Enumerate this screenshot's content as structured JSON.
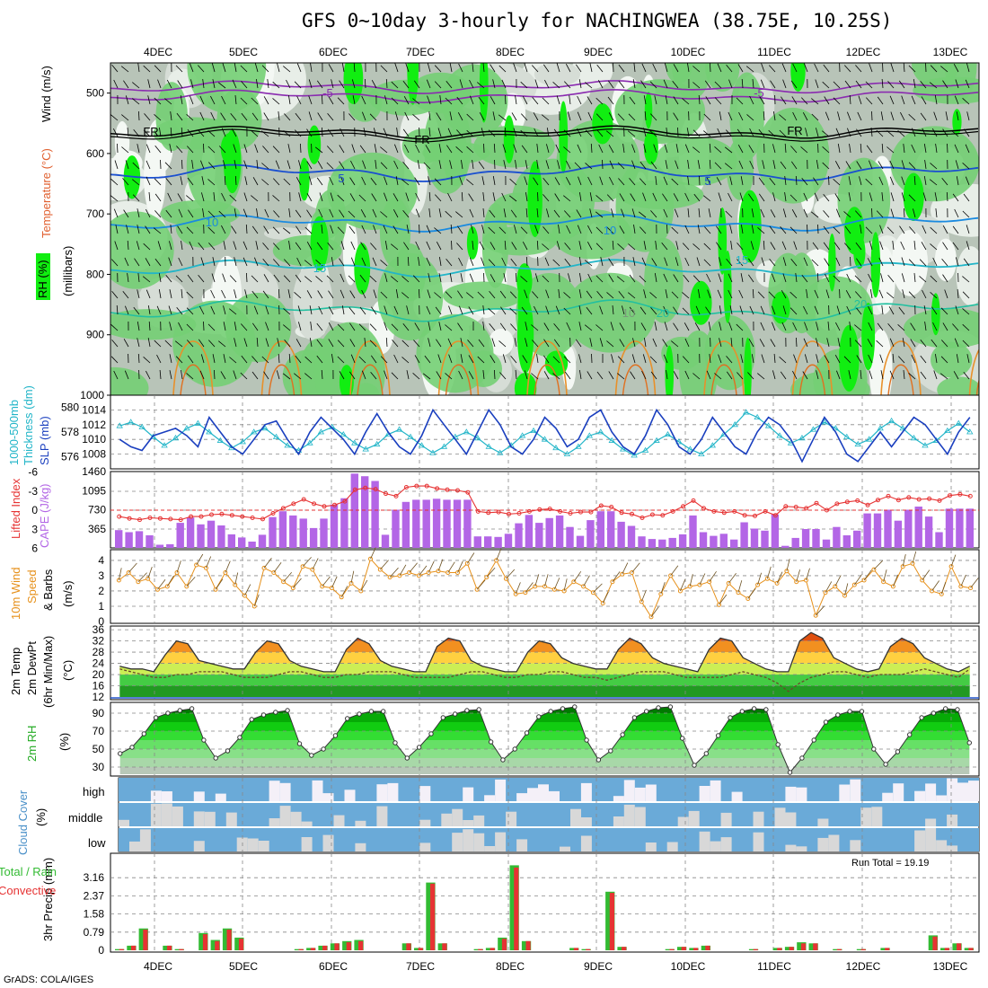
{
  "title": "GFS 0~10day 3-hourly for NACHINGWEA (38.75E, 10.25S)",
  "footer": "GrADS: COLA/IGES",
  "run_total": "Run Total = 19.19",
  "dates": [
    "4DEC",
    "5DEC",
    "6DEC",
    "7DEC",
    "8DEC",
    "9DEC",
    "10DEC",
    "11DEC",
    "12DEC",
    "13DEC"
  ],
  "colors": {
    "rh_light": "#d6ddd6",
    "rh_mid": "#b8c4b8",
    "rh_green": "#74cf74",
    "rh_bright": "#11ee11",
    "slp": "#1a3fbf",
    "thickness": "#22b5c8",
    "cape": "#b366e6",
    "lifted": "#e63333",
    "wind10": "#e6901a",
    "cloud": "#6aaad8",
    "precip_total": "#33bb33",
    "precip_conv": "#e63333"
  },
  "panels": {
    "upper_air": {
      "labels": [
        "Wind (m/s)",
        "Temperature (°C)",
        "RH (%)",
        "(millibars)"
      ],
      "y_ticks": [
        "500",
        "600",
        "700",
        "800",
        "900",
        "1000"
      ],
      "contour_labels": [
        "-5",
        "-5",
        "FR",
        "FR",
        "FR",
        "-5",
        "5",
        "5",
        "10",
        "10",
        "15",
        "15",
        "20",
        "20",
        "10"
      ]
    },
    "slp": {
      "labels": [
        "1000-500mb",
        "Thickness (dm)",
        "SLP (mb)"
      ],
      "thickness_ticks": [
        "580",
        "578",
        "576"
      ],
      "slp_ticks": [
        "1014",
        "1012",
        "1010",
        "1008"
      ]
    },
    "cape": {
      "labels": [
        "Lifted Index",
        "CAPE (J/kg)"
      ],
      "li_ticks": [
        "-6",
        "-3",
        "0",
        "3",
        "6"
      ],
      "cape_ticks": [
        "1460",
        "1095",
        "730",
        "365"
      ]
    },
    "wind10": {
      "labels": [
        "10m Wind",
        "Speed",
        "& Barbs",
        "(m/s)"
      ],
      "y_ticks": [
        "4",
        "3",
        "2",
        "1",
        "0"
      ]
    },
    "temp": {
      "labels": [
        "2m Temp",
        "2m DewPt",
        "(6hr Min/Max)",
        "(°C)"
      ],
      "y_ticks": [
        "36",
        "32",
        "28",
        "24",
        "20",
        "16",
        "12"
      ]
    },
    "rh": {
      "labels": [
        "2m RH",
        "(%)"
      ],
      "y_ticks": [
        "90",
        "70",
        "50",
        "30"
      ]
    },
    "cloud": {
      "labels": [
        "Cloud Cover",
        "(%)"
      ],
      "layers": [
        "high",
        "middle",
        "low"
      ]
    },
    "precip": {
      "labels": [
        "3hr Precip (mm)",
        "Total / Rain",
        "Convective"
      ],
      "y_ticks": [
        "3.16",
        "2.37",
        "1.58",
        "0.79",
        "0"
      ]
    }
  },
  "chart_data": [
    {
      "type": "line",
      "title": "SLP / 1000-500mb Thickness",
      "series": [
        {
          "name": "SLP (mb)",
          "values": [
            1010,
            1009,
            1008.5,
            1010.5,
            1011,
            1011.5,
            1010.5,
            1009,
            1013,
            1011,
            1009,
            1008,
            1010,
            1012,
            1012.5,
            1010,
            1008,
            1011,
            1013,
            1011.5,
            1010,
            1008,
            1011,
            1013.5,
            1011,
            1009,
            1008,
            1010.5,
            1014,
            1012,
            1010,
            1008,
            1011,
            1014,
            1012,
            1009,
            1008,
            1010,
            1013,
            1011.5,
            1009,
            1010,
            1013,
            1014,
            1011,
            1009,
            1008,
            1010.5,
            1014,
            1012,
            1009,
            1008,
            1010,
            1013,
            1011,
            1009,
            1008,
            1011,
            1013,
            1012,
            1010,
            1007,
            1010,
            1013,
            1011,
            1008,
            1007,
            1009,
            1011,
            1009,
            1011,
            1013,
            1012,
            1010,
            1008,
            1011,
            1013
          ]
        },
        {
          "name": "Thickness (dm)",
          "values": [
            578.5,
            578.8,
            578.4,
            577.6,
            576.9,
            577.5,
            578.3,
            578.7,
            578.0,
            577.3,
            576.7,
            577.2,
            578.0,
            578.3,
            577.6,
            576.9,
            576.5,
            577.1,
            578.0,
            578.4,
            577.8,
            577.1,
            576.6,
            577.0,
            577.8,
            578.2,
            577.6,
            576.9,
            576.3,
            576.8,
            577.6,
            578.0,
            577.5,
            576.8,
            576.3,
            576.9,
            577.7,
            578.1,
            577.4,
            576.7,
            576.2,
            576.8,
            577.7,
            578.0,
            577.3,
            576.6,
            576.1,
            576.5,
            577.3,
            577.8,
            577.2,
            576.6,
            576.2,
            576.9,
            577.8,
            578.6,
            579.6,
            579.2,
            578.5,
            577.7,
            577.1,
            577.5,
            578.2,
            578.8,
            578.3,
            577.6,
            577.0,
            577.4,
            578.3,
            578.9,
            578.3,
            577.5,
            576.9,
            577.3,
            578.1,
            578.7,
            578.0
          ]
        }
      ]
    },
    {
      "type": "bar",
      "title": "CAPE (J/kg) / Lifted Index",
      "series": [
        {
          "name": "CAPE (J/kg)",
          "values": [
            340,
            300,
            320,
            240,
            60,
            70,
            480,
            580,
            450,
            520,
            430,
            260,
            200,
            120,
            250,
            590,
            700,
            620,
            560,
            380,
            560,
            830,
            950,
            1420,
            1370,
            1280,
            250,
            730,
            880,
            920,
            920,
            940,
            920,
            920,
            920,
            220,
            220,
            210,
            270,
            470,
            630,
            480,
            570,
            620,
            400,
            230,
            530,
            700,
            700,
            500,
            420,
            220,
            170,
            160,
            190,
            260,
            620,
            300,
            230,
            270,
            160,
            490,
            370,
            330,
            640,
            40,
            190,
            360,
            360,
            160,
            400,
            240,
            330,
            660,
            660,
            730,
            520,
            730,
            790,
            600,
            300,
            750,
            750,
            750
          ]
        },
        {
          "name": "Lifted Index",
          "values": [
            1,
            1.3,
            1.5,
            1.2,
            1.3,
            1.4,
            1.5,
            1,
            1,
            0.7,
            0.6,
            0.8,
            1,
            1.2,
            1.4,
            0.5,
            -0.3,
            -1,
            -1.7,
            -1,
            -0.6,
            -0.8,
            -1.4,
            -3.2,
            -3.5,
            -3.3,
            -2.6,
            -2.2,
            -3.6,
            -3.8,
            -3.8,
            -3.4,
            -3.2,
            -3.1,
            -2.8,
            0.2,
            0.4,
            0.3,
            0.6,
            0.5,
            0.2,
            -0.1,
            -0.2,
            0.2,
            0.5,
            0.3,
            0.3,
            -0.7,
            -0.5,
            0.4,
            0.6,
            1.2,
            0.7,
            0.8,
            0.2,
            -0.6,
            -1.5,
            -0.3,
            0.2,
            0.4,
            0.2,
            0.8,
            0.9,
            0.2,
            0.8,
            -0.6,
            -0.5,
            -0.3,
            -1.1,
            0,
            -1,
            -1.3,
            -1.5,
            -0.8,
            -1.6,
            -2.2,
            -1.6,
            -2,
            -1.7,
            -1.8,
            -1.5,
            -2.3,
            -2.5,
            -2.2
          ]
        }
      ]
    },
    {
      "type": "line",
      "title": "10m Wind Speed",
      "series": [
        {
          "name": "10m Wind Speed (m/s)",
          "values": [
            2.7,
            3.2,
            2.6,
            2.8,
            2.1,
            2.3,
            3.2,
            2.3,
            3.7,
            3.5,
            2.1,
            3.2,
            2.4,
            1.7,
            1.0,
            3.5,
            3.2,
            2.6,
            2.2,
            3.6,
            3.4,
            2.3,
            2.2,
            1.6,
            2.5,
            2.0,
            4.1,
            3.4,
            2.9,
            3.0,
            3.2,
            3.0,
            3.2,
            3.3,
            3.2,
            3.2,
            3.8,
            2.1,
            2.9,
            4.0,
            2.8,
            1.8,
            1.9,
            2.3,
            2.3,
            2.1,
            2.0,
            2.6,
            2.3,
            1.9,
            1.2,
            2.6,
            3.1,
            3.2,
            1.3,
            0.3,
            1.8,
            3.0,
            2.0,
            2.3,
            2.4,
            2.6,
            1.1,
            2.5,
            1.9,
            1.5,
            2.4,
            2.8,
            2.5,
            3.3,
            2.6,
            2.7,
            0.4,
            1.9,
            2.3,
            1.7,
            2.4,
            2.7,
            3.4,
            2.6,
            2.3,
            3.6,
            3.8,
            2.7,
            2.0,
            1.8,
            3.6,
            2.3,
            2.2
          ]
        }
      ]
    },
    {
      "type": "area",
      "title": "2m Temp / 2m DewPt",
      "series": [
        {
          "name": "2m Temp (°C)",
          "values": [
            23,
            22,
            22,
            21,
            27,
            32,
            31,
            25,
            24,
            23,
            22,
            22,
            28,
            32,
            31,
            25,
            23,
            22,
            21,
            21,
            29,
            33,
            31,
            25,
            23,
            22,
            21,
            21,
            30,
            33,
            32,
            25,
            23,
            22,
            21,
            21,
            28,
            32,
            31,
            26,
            24,
            23,
            22,
            22,
            29,
            33,
            31,
            26,
            24,
            23,
            22,
            21,
            29,
            33,
            32,
            26,
            24,
            22,
            21,
            21,
            32,
            35,
            33,
            26,
            24,
            22,
            21,
            22,
            30,
            33,
            31,
            26,
            24,
            22,
            21,
            23
          ]
        },
        {
          "name": "2m DewPt (°C)",
          "values": [
            22,
            21,
            20,
            19,
            19,
            20,
            20,
            21,
            21,
            21,
            20,
            19,
            19,
            19,
            20,
            21,
            21,
            20,
            19,
            19,
            20,
            20,
            21,
            21,
            21,
            20,
            19,
            19,
            19,
            19,
            20,
            21,
            21,
            20,
            19,
            19,
            20,
            20,
            21,
            21,
            20,
            19,
            19,
            18,
            19,
            20,
            21,
            21,
            21,
            20,
            19,
            19,
            19,
            19,
            20,
            21,
            20,
            19,
            17,
            14,
            17,
            19,
            20,
            21,
            21,
            20,
            19,
            20,
            20,
            20,
            21,
            22,
            21,
            20,
            19,
            22
          ]
        }
      ]
    },
    {
      "type": "area",
      "title": "2m RH",
      "series": [
        {
          "name": "2m RH (%)",
          "values": [
            45,
            52,
            67,
            85,
            90,
            93,
            95,
            60,
            40,
            48,
            63,
            83,
            88,
            91,
            93,
            56,
            43,
            50,
            65,
            84,
            89,
            92,
            92,
            57,
            40,
            52,
            67,
            85,
            89,
            93,
            94,
            58,
            38,
            50,
            68,
            86,
            92,
            95,
            97,
            60,
            38,
            48,
            66,
            85,
            92,
            96,
            97,
            62,
            32,
            45,
            65,
            85,
            92,
            95,
            94,
            55,
            24,
            40,
            60,
            80,
            88,
            92,
            92,
            50,
            33,
            47,
            66,
            85,
            90,
            95,
            94,
            57
          ]
        }
      ]
    },
    {
      "type": "bar",
      "title": "3hr Precip",
      "series": [
        {
          "name": "Total / Rain (mm)",
          "values": [
            0.05,
            0.2,
            0.95,
            0,
            0.2,
            0.05,
            0,
            0.75,
            0.45,
            0.95,
            0.55,
            0,
            0,
            0,
            0,
            0.05,
            0.1,
            0.2,
            0.3,
            0.4,
            0.45,
            0,
            0,
            0,
            0.3,
            0.1,
            2.95,
            0.3,
            0,
            0,
            0.05,
            0.1,
            0.55,
            3.7,
            0.4,
            0,
            0,
            0,
            0.1,
            0.05,
            0,
            2.55,
            0.15,
            0,
            0,
            0,
            0.05,
            0.15,
            0.1,
            0.2,
            0,
            0,
            0,
            0.05,
            0,
            0.1,
            0.15,
            0.35,
            0.3,
            0,
            0.05,
            0,
            0.05,
            0,
            0.1,
            0,
            0,
            0,
            0.65,
            0.1,
            0.3,
            0.1
          ]
        },
        {
          "name": "Convective (mm)",
          "values": [
            0.05,
            0.2,
            0.9,
            0,
            0.2,
            0.05,
            0,
            0.7,
            0.4,
            0.9,
            0.5,
            0,
            0,
            0,
            0,
            0.05,
            0.1,
            0.2,
            0.3,
            0.35,
            0.4,
            0,
            0,
            0,
            0.3,
            0.1,
            2.9,
            0.3,
            0,
            0,
            0.05,
            0.1,
            0.5,
            3.6,
            0.4,
            0,
            0,
            0,
            0.1,
            0.05,
            0,
            2.5,
            0.15,
            0,
            0,
            0,
            0.05,
            0.15,
            0.1,
            0.2,
            0,
            0,
            0,
            0.05,
            0,
            0.1,
            0.15,
            0.3,
            0.3,
            0,
            0.05,
            0,
            0.05,
            0,
            0.1,
            0,
            0,
            0,
            0.6,
            0.1,
            0.3,
            0.1
          ]
        }
      ]
    }
  ]
}
